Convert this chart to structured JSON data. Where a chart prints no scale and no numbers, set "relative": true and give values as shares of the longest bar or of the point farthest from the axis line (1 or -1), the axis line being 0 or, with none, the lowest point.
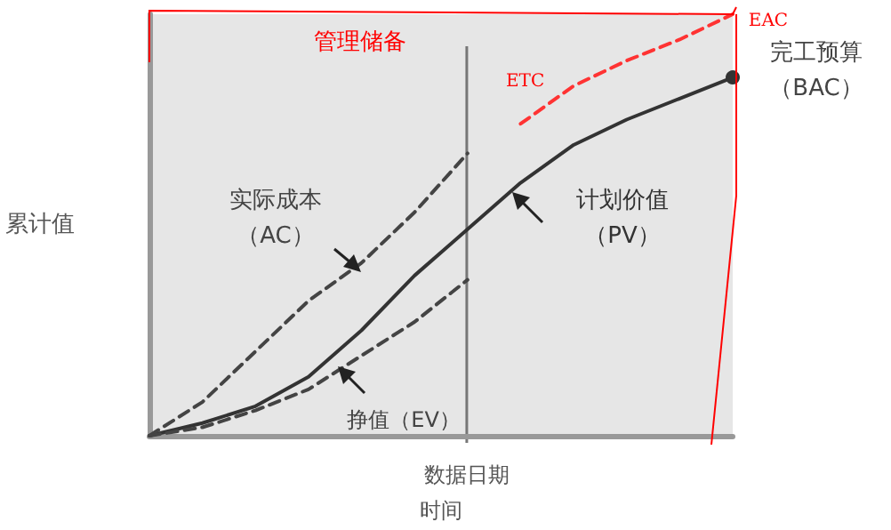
{
  "chart_data": {
    "type": "line",
    "relative": true,
    "ylabel": "累计值",
    "xlabel": "时间",
    "categories": [
      null,
      null,
      null,
      null,
      null,
      null,
      null,
      null,
      null,
      null,
      null,
      null
    ],
    "series": [
      {
        "name": "计划价值（PV）",
        "color": "#333333",
        "line_style": "solid",
        "values": [
          0,
          0.03,
          0.07,
          0.14,
          0.25,
          0.38,
          0.49,
          0.6,
          0.69,
          0.75,
          0.8,
          0.85
        ]
      },
      {
        "name": "实际成本（AC）",
        "color": "#444444",
        "line_style": "dashed",
        "values": [
          0,
          0.08,
          0.2,
          0.32,
          0.41,
          0.53,
          0.67,
          null,
          null,
          null,
          null,
          null
        ]
      },
      {
        "name": "挣值（EV）",
        "color": "#444444",
        "line_style": "dashed",
        "values": [
          0,
          0.02,
          0.06,
          0.11,
          0.19,
          0.27,
          0.37,
          null,
          null,
          null,
          null,
          null
        ]
      },
      {
        "color": "#ff3333",
        "line_style": "dashed",
        "values": [
          null,
          null,
          null,
          null,
          null,
          null,
          null,
          0.74,
          0.83,
          0.89,
          0.94,
          1
        ]
      }
    ],
    "annotations": [
      "完工预算（BAC）",
      "管理储备",
      "ETC",
      "EAC",
      "数据日期"
    ],
    "marker": "none",
    "legend": false,
    "grid": false
  }
}
